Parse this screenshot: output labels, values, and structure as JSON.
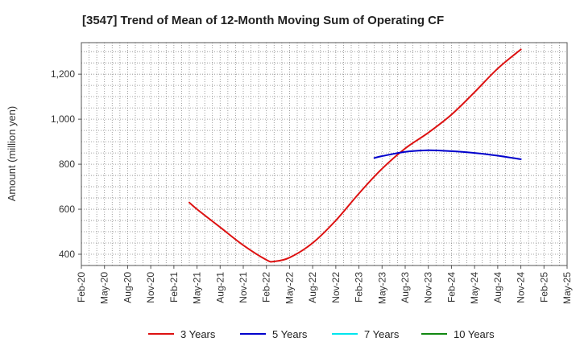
{
  "chart_data": {
    "type": "line",
    "title": "[3547]  Trend of Mean of 12-Month Moving Sum of Operating CF",
    "xlabel": "",
    "ylabel": "Amount (million yen)",
    "ylim": [
      350,
      1340
    ],
    "yticks": [
      400,
      600,
      800,
      1000,
      1200
    ],
    "ytick_labels": [
      "400",
      "600",
      "800",
      "1,000",
      "1,200"
    ],
    "x_categories": [
      "Feb-20",
      "May-20",
      "Aug-20",
      "Nov-20",
      "Feb-21",
      "May-21",
      "Aug-21",
      "Nov-21",
      "Feb-22",
      "May-22",
      "Aug-22",
      "Nov-22",
      "Feb-23",
      "May-23",
      "Aug-23",
      "Nov-23",
      "Feb-24",
      "May-24",
      "Aug-24",
      "Nov-24",
      "Feb-25",
      "May-25"
    ],
    "grid": true,
    "legend_position": "bottom",
    "series": [
      {
        "name": "3 Years",
        "color": "#dd1111",
        "points": [
          [
            "Apr-21",
            630
          ],
          [
            "May-21",
            600
          ],
          [
            "Aug-21",
            520
          ],
          [
            "Nov-21",
            440
          ],
          [
            "Feb-22",
            375
          ],
          [
            "Mar-22",
            368
          ],
          [
            "May-22",
            385
          ],
          [
            "Aug-22",
            450
          ],
          [
            "Nov-22",
            550
          ],
          [
            "Feb-23",
            670
          ],
          [
            "May-23",
            780
          ],
          [
            "Aug-23",
            870
          ],
          [
            "Nov-23",
            940
          ],
          [
            "Feb-24",
            1020
          ],
          [
            "May-24",
            1120
          ],
          [
            "Aug-24",
            1225
          ],
          [
            "Nov-24",
            1310
          ]
        ]
      },
      {
        "name": "5 Years",
        "color": "#0000cc",
        "points": [
          [
            "Apr-23",
            828
          ],
          [
            "May-23",
            836
          ],
          [
            "Aug-23",
            855
          ],
          [
            "Nov-23",
            862
          ],
          [
            "Feb-24",
            858
          ],
          [
            "May-24",
            850
          ],
          [
            "Aug-24",
            838
          ],
          [
            "Nov-24",
            822
          ]
        ]
      },
      {
        "name": "7 Years",
        "color": "#00e5ee",
        "points": []
      },
      {
        "name": "10 Years",
        "color": "#118811",
        "points": []
      }
    ]
  }
}
